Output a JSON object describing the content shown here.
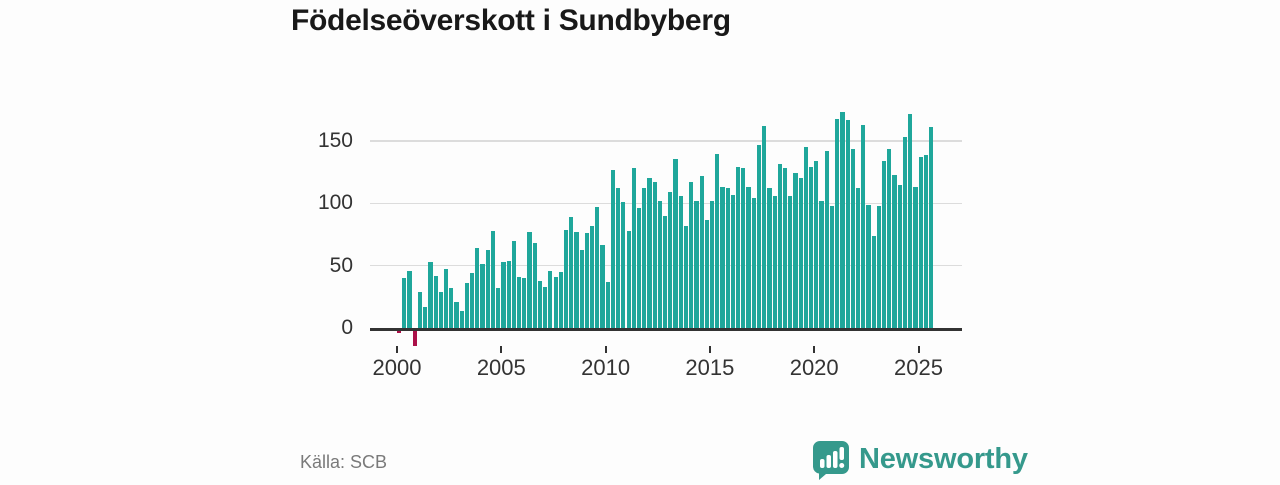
{
  "title": "Födelseöverskott i Sundbyberg",
  "source": {
    "label": "Källa: SCB"
  },
  "branding": {
    "name": "Newsworthy",
    "icon": "bar-chart-speech-bubble",
    "color": "#35998C"
  },
  "chart_data": {
    "type": "bar",
    "title": "Födelseöverskott i Sundbyberg",
    "frequency": "quarterly",
    "x_start": "2000Q1",
    "x_end": "2025Q3",
    "values": [
      -2,
      40,
      46,
      -12,
      29,
      17,
      53,
      42,
      29,
      47,
      32,
      21,
      14,
      36,
      44,
      64,
      51,
      63,
      78,
      32,
      53,
      54,
      70,
      41,
      40,
      77,
      68,
      38,
      33,
      46,
      41,
      45,
      79,
      89,
      77,
      63,
      76,
      82,
      97,
      67,
      37,
      127,
      112,
      101,
      78,
      128,
      96,
      112,
      120,
      117,
      102,
      90,
      109,
      136,
      106,
      82,
      117,
      102,
      122,
      87,
      102,
      140,
      113,
      112,
      107,
      129,
      128,
      113,
      104,
      147,
      162,
      112,
      106,
      132,
      128,
      106,
      124,
      120,
      145,
      129,
      134,
      102,
      142,
      98,
      168,
      173,
      167,
      144,
      112,
      163,
      99,
      74,
      98,
      134,
      144,
      123,
      115,
      153,
      172,
      113,
      137,
      139,
      161
    ],
    "x_tick_years": [
      2000,
      2005,
      2010,
      2015,
      2020,
      2025
    ],
    "x_tick_labels": [
      "2000",
      "2005",
      "2010",
      "2015",
      "2020",
      "2025"
    ],
    "y_ticks": [
      0,
      50,
      100,
      150
    ],
    "ylim": [
      -20,
      180
    ],
    "grid": "horizontal",
    "legend": "none",
    "colors": {
      "positive": "#1FA79B",
      "negative": "#AB1048",
      "axis": "#333333",
      "grid": "#DCDCDC",
      "tick_label": "#333333",
      "title": "#191919",
      "source": "#7A7A7A"
    }
  }
}
